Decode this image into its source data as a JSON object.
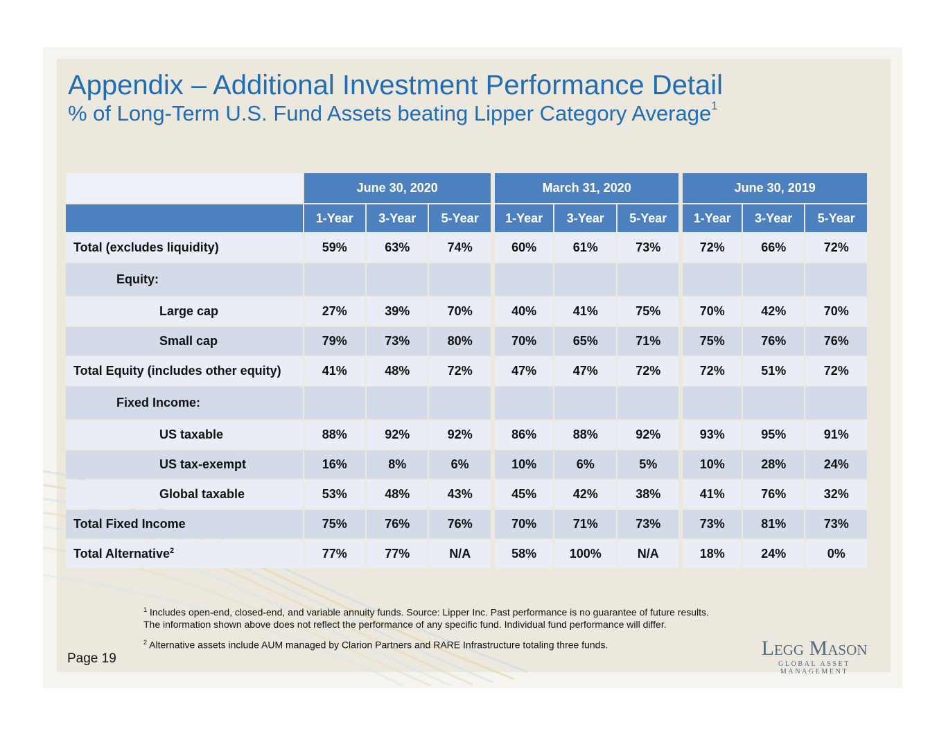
{
  "slide": {
    "title": "Appendix – Additional Investment Performance Detail",
    "subtitle": "% of Long-Term U.S. Fund Assets beating Lipper Category Average",
    "subtitle_footnote": "1"
  },
  "table": {
    "periods": [
      "June 30, 2020",
      "March 31, 2020",
      "June 30, 2019"
    ],
    "horizons": [
      "1-Year",
      "3-Year",
      "5-Year",
      "1-Year",
      "3-Year",
      "5-Year",
      "1-Year",
      "3-Year",
      "5-Year"
    ],
    "rows": [
      {
        "label": "Total (excludes liquidity)",
        "values": [
          "59%",
          "63%",
          "74%",
          "60%",
          "61%",
          "73%",
          "72%",
          "66%",
          "72%"
        ]
      },
      {
        "label": "Equity:",
        "values": [
          "",
          "",
          "",
          "",
          "",
          "",
          "",
          "",
          ""
        ]
      },
      {
        "label": "Large cap",
        "values": [
          "27%",
          "39%",
          "70%",
          "40%",
          "41%",
          "75%",
          "70%",
          "42%",
          "70%"
        ]
      },
      {
        "label": "Small cap",
        "values": [
          "79%",
          "73%",
          "80%",
          "70%",
          "65%",
          "71%",
          "75%",
          "76%",
          "76%"
        ]
      },
      {
        "label": "Total Equity (includes other equity)",
        "values": [
          "41%",
          "48%",
          "72%",
          "47%",
          "47%",
          "72%",
          "72%",
          "51%",
          "72%"
        ]
      },
      {
        "label": "Fixed Income:",
        "values": [
          "",
          "",
          "",
          "",
          "",
          "",
          "",
          "",
          ""
        ]
      },
      {
        "label": "US taxable",
        "values": [
          "88%",
          "92%",
          "92%",
          "86%",
          "88%",
          "92%",
          "93%",
          "95%",
          "91%"
        ]
      },
      {
        "label": "US tax-exempt",
        "values": [
          "16%",
          "8%",
          "6%",
          "10%",
          "6%",
          "5%",
          "10%",
          "28%",
          "24%"
        ]
      },
      {
        "label": "Global taxable",
        "values": [
          "53%",
          "48%",
          "43%",
          "45%",
          "42%",
          "38%",
          "41%",
          "76%",
          "32%"
        ]
      },
      {
        "label": "Total Fixed Income",
        "values": [
          "75%",
          "76%",
          "76%",
          "70%",
          "71%",
          "73%",
          "73%",
          "81%",
          "73%"
        ]
      },
      {
        "label": "Total Alternative",
        "label_footnote": "2",
        "values": [
          "77%",
          "77%",
          "N/A",
          "58%",
          "100%",
          "N/A",
          "18%",
          "24%",
          "0%"
        ]
      }
    ]
  },
  "footnotes": [
    {
      "mark": "1",
      "text": " Includes open-end, closed-end, and variable annuity funds. Source: Lipper Inc. Past performance is no guarantee of future results. The information shown above does not reflect the performance of any specific fund. Individual fund performance will differ."
    },
    {
      "mark": "2",
      "text": " Alternative assets include AUM managed by Clarion Partners and RARE Infrastructure totaling three funds."
    }
  ],
  "page_label": "Page 19",
  "logo": {
    "name": "Legg Mason",
    "tagline": "GLOBAL ASSET MANAGEMENT"
  }
}
